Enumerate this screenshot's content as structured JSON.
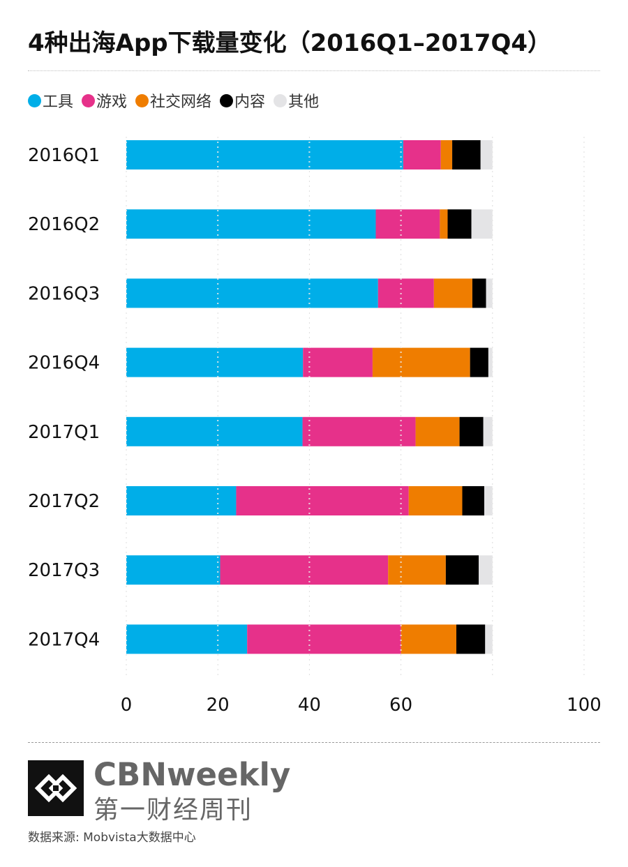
{
  "header": {
    "title": "4种出海App下载量变化（2016Q1–2017Q4）"
  },
  "footer": {
    "brand_en": "CBNweekly",
    "brand_cn": "第一财经周刊",
    "source": "数据来源: Mobvista大数据中心"
  },
  "chart_data": {
    "type": "bar",
    "orientation": "horizontal",
    "stacked": true,
    "title": "4种出海App下载量变化（2016Q1–2017Q4）",
    "xlabel": "",
    "ylabel": "",
    "xlim": [
      0,
      100
    ],
    "x_ticks": [
      0,
      20,
      40,
      60,
      100
    ],
    "x_tick_labels": [
      "0",
      "20",
      "40",
      "60",
      "100"
    ],
    "grid": true,
    "legend_position": "top-left",
    "categories": [
      "2016Q1",
      "2016Q2",
      "2016Q3",
      "2016Q4",
      "2017Q1",
      "2017Q2",
      "2017Q3",
      "2017Q4"
    ],
    "series": [
      {
        "name": "工具",
        "color": "#00aee8",
        "values": [
          60.5,
          54.5,
          55.0,
          38.6,
          38.5,
          24.0,
          20.5,
          26.4
        ]
      },
      {
        "name": "游戏",
        "color": "#e6318a",
        "values": [
          8.2,
          14.0,
          12.2,
          15.2,
          24.7,
          37.7,
          36.7,
          33.6
        ]
      },
      {
        "name": "社交网络",
        "color": "#ef7d00",
        "values": [
          2.5,
          1.7,
          8.4,
          21.3,
          9.6,
          11.7,
          12.6,
          12.1
        ]
      },
      {
        "name": "内容",
        "color": "#000000",
        "values": [
          6.2,
          5.2,
          3.0,
          4.0,
          5.2,
          4.8,
          7.2,
          6.3
        ]
      },
      {
        "name": "其他",
        "color": "#e4e4e6",
        "values": [
          2.6,
          4.6,
          1.4,
          0.9,
          2.0,
          1.8,
          3.0,
          1.6
        ]
      }
    ]
  }
}
